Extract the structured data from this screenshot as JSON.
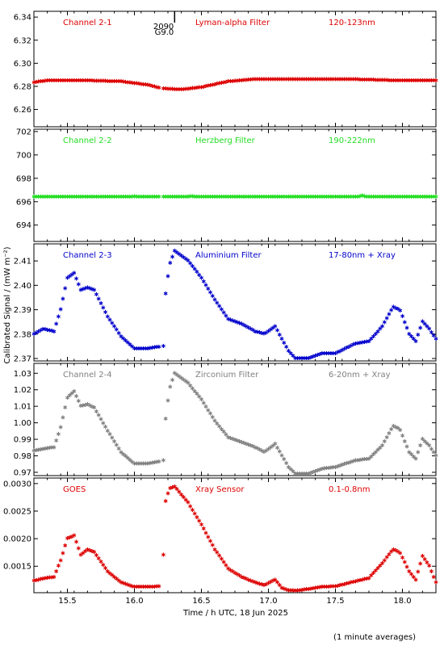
{
  "chart_data": {
    "type": "scatter",
    "xlabel": "Time / h UTC, 18 Jun 2025",
    "ylabel": "Calibrated Signal / (mW m⁻²)",
    "footnote": "(1 minute averages)",
    "xlim": [
      15.25,
      18.25
    ],
    "xticks": [
      "15.5",
      "16.0",
      "16.5",
      "17.0",
      "17.5",
      "18.0"
    ],
    "marker": "*",
    "annotation": {
      "x": 16.3,
      "lines": [
        "2090",
        "G9.0"
      ]
    },
    "panels": [
      {
        "channel": "Channel 2-1",
        "filter": "Lyman-alpha Filter",
        "band": "120-123nm",
        "color": "#dd0000",
        "ylim": [
          6.245,
          6.345
        ],
        "yticks": [
          "6.26",
          "6.28",
          "6.30",
          "6.32",
          "6.34"
        ],
        "keyframes": [
          [
            15.25,
            6.283
          ],
          [
            15.35,
            6.285
          ],
          [
            15.6,
            6.285
          ],
          [
            15.9,
            6.284
          ],
          [
            16.1,
            6.281
          ],
          [
            16.2,
            6.278
          ],
          [
            16.35,
            6.277
          ],
          [
            16.5,
            6.279
          ],
          [
            16.7,
            6.284
          ],
          [
            16.9,
            6.286
          ],
          [
            17.2,
            6.286
          ],
          [
            17.6,
            6.286
          ],
          [
            17.9,
            6.285
          ],
          [
            18.25,
            6.285
          ]
        ]
      },
      {
        "channel": "Channel 2-2",
        "filter": "Herzberg Filter",
        "band": "190-222nm",
        "color": "#22dd22",
        "ylim": [
          692.6,
          702.2
        ],
        "yticks": [
          "694",
          "696",
          "698",
          "700",
          "702"
        ],
        "keyframes": [
          [
            15.25,
            696.4
          ],
          [
            15.99,
            696.4
          ],
          [
            16.0,
            696.45
          ],
          [
            16.01,
            696.4
          ],
          [
            16.4,
            696.4
          ],
          [
            16.42,
            696.45
          ],
          [
            16.44,
            696.4
          ],
          [
            17.68,
            696.4
          ],
          [
            17.7,
            696.5
          ],
          [
            17.72,
            696.4
          ],
          [
            18.25,
            696.4
          ]
        ]
      },
      {
        "channel": "Channel 2-3",
        "filter": "Aluminium Filter",
        "band": "17-80nm + Xray",
        "color": "#0000cc",
        "ylim": [
          2.369,
          2.417
        ],
        "yticks": [
          "2.37",
          "2.38",
          "2.39",
          "2.40",
          "2.41"
        ],
        "keyframes": [
          [
            15.25,
            2.38
          ],
          [
            15.32,
            2.382
          ],
          [
            15.4,
            2.381
          ],
          [
            15.45,
            2.39
          ],
          [
            15.5,
            2.403
          ],
          [
            15.55,
            2.405
          ],
          [
            15.6,
            2.398
          ],
          [
            15.65,
            2.399
          ],
          [
            15.7,
            2.398
          ],
          [
            15.8,
            2.387
          ],
          [
            15.9,
            2.379
          ],
          [
            16.0,
            2.374
          ],
          [
            16.1,
            2.374
          ],
          [
            16.22,
            2.375
          ],
          [
            16.23,
            2.395
          ],
          [
            16.26,
            2.408
          ],
          [
            16.3,
            2.414
          ],
          [
            16.4,
            2.41
          ],
          [
            16.5,
            2.403
          ],
          [
            16.6,
            2.394
          ],
          [
            16.7,
            2.386
          ],
          [
            16.8,
            2.384
          ],
          [
            16.9,
            2.381
          ],
          [
            16.97,
            2.38
          ],
          [
            17.05,
            2.383
          ],
          [
            17.1,
            2.378
          ],
          [
            17.15,
            2.373
          ],
          [
            17.2,
            2.37
          ],
          [
            17.3,
            2.37
          ],
          [
            17.4,
            2.372
          ],
          [
            17.5,
            2.372
          ],
          [
            17.65,
            2.376
          ],
          [
            17.75,
            2.377
          ],
          [
            17.85,
            2.383
          ],
          [
            17.93,
            2.391
          ],
          [
            17.98,
            2.39
          ],
          [
            18.05,
            2.38
          ],
          [
            18.1,
            2.377
          ],
          [
            18.15,
            2.385
          ],
          [
            18.2,
            2.382
          ],
          [
            18.25,
            2.378
          ]
        ]
      },
      {
        "channel": "Channel 2-4",
        "filter": "Zirconium Filter",
        "band": "6-20nm + Xray",
        "color": "#808080",
        "ylim": [
          0.968,
          1.036
        ],
        "yticks": [
          "0.97",
          "0.98",
          "0.99",
          "1.00",
          "1.01",
          "1.02",
          "1.03"
        ],
        "keyframes": [
          [
            15.25,
            0.983
          ],
          [
            15.32,
            0.984
          ],
          [
            15.4,
            0.985
          ],
          [
            15.45,
            0.997
          ],
          [
            15.5,
            1.015
          ],
          [
            15.55,
            1.019
          ],
          [
            15.6,
            1.01
          ],
          [
            15.65,
            1.011
          ],
          [
            15.7,
            1.009
          ],
          [
            15.8,
            0.995
          ],
          [
            15.9,
            0.982
          ],
          [
            16.0,
            0.975
          ],
          [
            16.1,
            0.975
          ],
          [
            16.22,
            0.977
          ],
          [
            16.23,
            1.0
          ],
          [
            16.26,
            1.02
          ],
          [
            16.3,
            1.03
          ],
          [
            16.4,
            1.024
          ],
          [
            16.5,
            1.014
          ],
          [
            16.6,
            1.001
          ],
          [
            16.7,
            0.991
          ],
          [
            16.8,
            0.988
          ],
          [
            16.9,
            0.985
          ],
          [
            16.97,
            0.982
          ],
          [
            17.05,
            0.987
          ],
          [
            17.1,
            0.98
          ],
          [
            17.15,
            0.973
          ],
          [
            17.2,
            0.969
          ],
          [
            17.3,
            0.969
          ],
          [
            17.4,
            0.972
          ],
          [
            17.5,
            0.973
          ],
          [
            17.65,
            0.977
          ],
          [
            17.75,
            0.978
          ],
          [
            17.85,
            0.986
          ],
          [
            17.93,
            0.998
          ],
          [
            17.98,
            0.996
          ],
          [
            18.05,
            0.982
          ],
          [
            18.1,
            0.978
          ],
          [
            18.15,
            0.99
          ],
          [
            18.2,
            0.986
          ],
          [
            18.25,
            0.98
          ]
        ]
      },
      {
        "channel": "GOES",
        "filter": "Xray Sensor",
        "band": "0.1-0.8nm",
        "color": "#dd0000",
        "ylim": [
          0.00102,
          0.0031
        ],
        "yticks": [
          "0.0015",
          "0.0020",
          "0.0025",
          "0.0030"
        ],
        "keyframes": [
          [
            15.25,
            0.00123
          ],
          [
            15.32,
            0.00127
          ],
          [
            15.4,
            0.0013
          ],
          [
            15.45,
            0.0016
          ],
          [
            15.5,
            0.002
          ],
          [
            15.55,
            0.00205
          ],
          [
            15.6,
            0.0017
          ],
          [
            15.65,
            0.0018
          ],
          [
            15.7,
            0.00175
          ],
          [
            15.8,
            0.0014
          ],
          [
            15.9,
            0.0012
          ],
          [
            16.0,
            0.00112
          ],
          [
            16.1,
            0.00112
          ],
          [
            16.2,
            0.00113
          ],
          [
            16.21,
            0.00123
          ],
          [
            16.23,
            0.00265
          ],
          [
            16.26,
            0.0029
          ],
          [
            16.3,
            0.00294
          ],
          [
            16.4,
            0.00265
          ],
          [
            16.5,
            0.00225
          ],
          [
            16.6,
            0.0018
          ],
          [
            16.7,
            0.00145
          ],
          [
            16.8,
            0.0013
          ],
          [
            16.9,
            0.0012
          ],
          [
            16.97,
            0.00115
          ],
          [
            17.05,
            0.00125
          ],
          [
            17.1,
            0.0011
          ],
          [
            17.15,
            0.00106
          ],
          [
            17.2,
            0.00105
          ],
          [
            17.3,
            0.00108
          ],
          [
            17.4,
            0.00112
          ],
          [
            17.5,
            0.00113
          ],
          [
            17.65,
            0.00122
          ],
          [
            17.75,
            0.00128
          ],
          [
            17.85,
            0.00155
          ],
          [
            17.93,
            0.0018
          ],
          [
            17.98,
            0.00175
          ],
          [
            18.05,
            0.0014
          ],
          [
            18.1,
            0.00125
          ],
          [
            18.15,
            0.00168
          ],
          [
            18.2,
            0.0015
          ],
          [
            18.25,
            0.0012
          ]
        ]
      }
    ]
  }
}
